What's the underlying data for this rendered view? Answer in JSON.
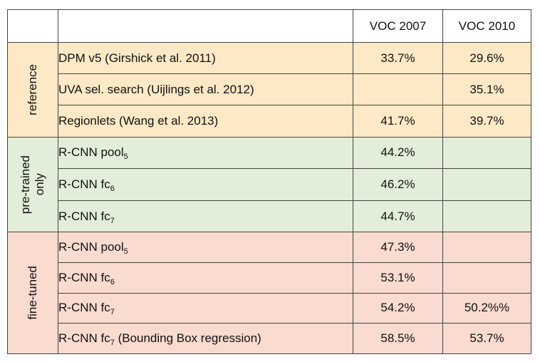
{
  "table": {
    "headers": [
      "",
      "",
      "VOC 2007",
      "VOC 2010"
    ],
    "groups": [
      {
        "label": "reference",
        "rows": [
          {
            "method": "DPM v5 (Girshick et al. 2011)",
            "sub": "",
            "suffix": "",
            "voc2007": "33.7%",
            "voc2010": "29.6%"
          },
          {
            "method": "UVA sel. search (Uijlings et al. 2012)",
            "sub": "",
            "suffix": "",
            "voc2007": "",
            "voc2010": "35.1%"
          },
          {
            "method": "Regionlets (Wang et al. 2013)",
            "sub": "",
            "suffix": "",
            "voc2007": "41.7%",
            "voc2010": "39.7%"
          }
        ]
      },
      {
        "label": "pre-trained\nonly",
        "rows": [
          {
            "method": "R-CNN pool",
            "sub": "5",
            "suffix": "",
            "voc2007": "44.2%",
            "voc2010": ""
          },
          {
            "method": "R-CNN fc",
            "sub": "6",
            "suffix": "",
            "voc2007": "46.2%",
            "voc2010": ""
          },
          {
            "method": "R-CNN fc",
            "sub": "7",
            "suffix": "",
            "voc2007": "44.7%",
            "voc2010": ""
          }
        ]
      },
      {
        "label": "fine-tuned",
        "rows": [
          {
            "method": "R-CNN pool",
            "sub": "5",
            "suffix": "",
            "voc2007": "47.3%",
            "voc2010": ""
          },
          {
            "method": "R-CNN fc",
            "sub": "6",
            "suffix": "",
            "voc2007": "53.1%",
            "voc2010": ""
          },
          {
            "method": "R-CNN fc",
            "sub": "7",
            "suffix": "",
            "voc2007": "54.2%",
            "voc2010": "50.2%%"
          },
          {
            "method": "R-CNN fc",
            "sub": "7",
            "suffix": " (Bounding Box regression)",
            "voc2007": "58.5%",
            "voc2010": "53.7%",
            "voc2007_bold": true
          }
        ]
      }
    ],
    "colors": {
      "reference": "#fde9c6",
      "pre": "#e2eed9",
      "fine": "#f9dbcf",
      "border": "#444444"
    }
  }
}
